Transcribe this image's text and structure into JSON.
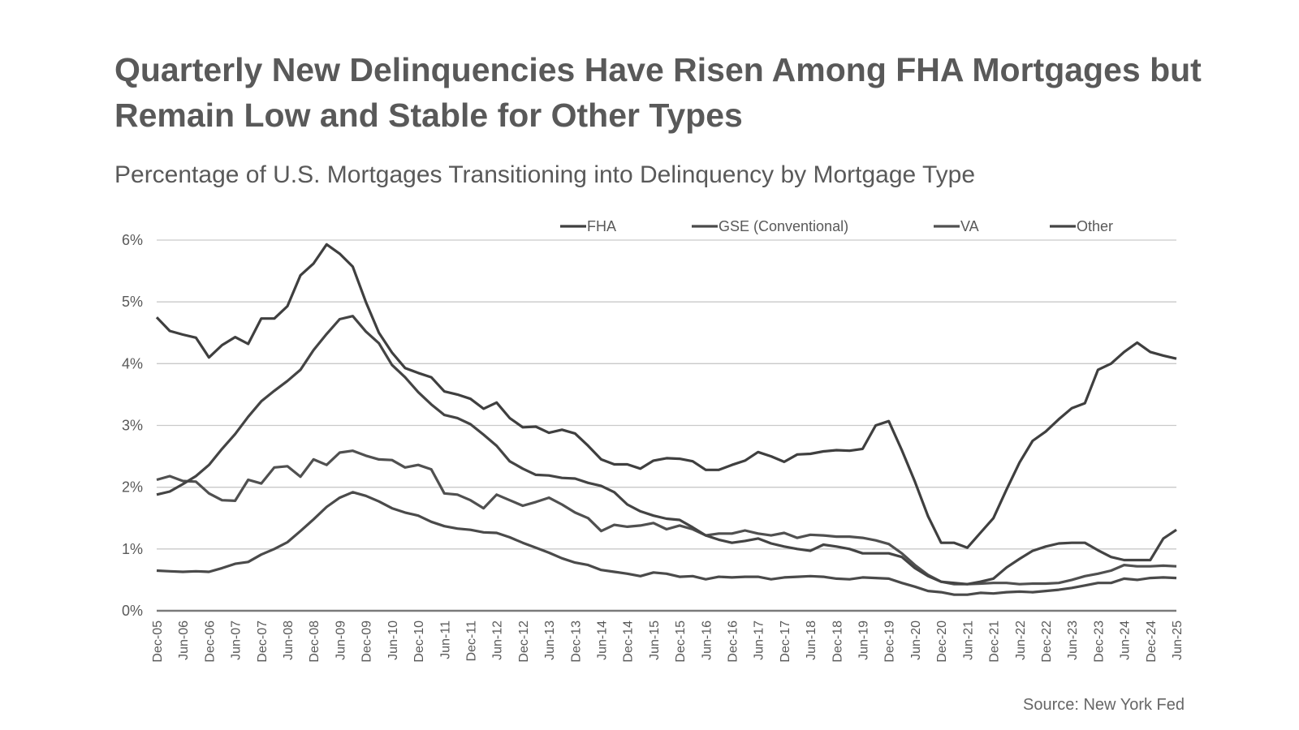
{
  "chart_data": {
    "type": "line",
    "title": "Quarterly New Delinquencies Have Risen Among FHA Mortgages but Remain Low and Stable for Other Types",
    "subtitle": "Percentage of U.S. Mortgages Transitioning into Delinquency by Mortgage Type",
    "source": "Source: New York Fed",
    "xlabel": "",
    "ylabel": "",
    "ylim": [
      0,
      6
    ],
    "y_ticks": [
      "0%",
      "1%",
      "2%",
      "3%",
      "4%",
      "5%",
      "6%"
    ],
    "x_frequency": "quarterly, Dec-05 to Jun-25",
    "x_ticks": [
      "Dec-05",
      "Jun-06",
      "Dec-06",
      "Jun-07",
      "Dec-07",
      "Jun-08",
      "Dec-08",
      "Jun-09",
      "Dec-09",
      "Jun-10",
      "Dec-10",
      "Jun-11",
      "Dec-11",
      "Jun-12",
      "Dec-12",
      "Jun-13",
      "Dec-13",
      "Jun-14",
      "Dec-14",
      "Jun-15",
      "Dec-15",
      "Jun-16",
      "Dec-16",
      "Jun-17",
      "Dec-17",
      "Jun-18",
      "Dec-18",
      "Jun-19",
      "Dec-19",
      "Jun-20",
      "Dec-20",
      "Jun-21",
      "Dec-21",
      "Jun-22",
      "Dec-22",
      "Jun-23",
      "Dec-23",
      "Jun-24",
      "Dec-24",
      "Jun-25"
    ],
    "grid": true,
    "legend_position": "top",
    "series": [
      {
        "name": "FHA",
        "color": "#3f3f3f",
        "values": [
          4.75,
          4.53,
          4.47,
          4.42,
          4.1,
          4.3,
          4.43,
          4.32,
          4.73,
          4.73,
          4.93,
          5.43,
          5.62,
          5.93,
          5.78,
          5.57,
          5.0,
          4.5,
          4.18,
          3.93,
          3.85,
          3.78,
          3.55,
          3.5,
          3.43,
          3.27,
          3.37,
          3.12,
          2.97,
          2.98,
          2.88,
          2.93,
          2.87,
          2.67,
          2.45,
          2.37,
          2.37,
          2.3,
          2.43,
          2.47,
          2.46,
          2.42,
          2.28,
          2.28,
          2.36,
          2.43,
          2.57,
          2.5,
          2.41,
          2.53,
          2.54,
          2.58,
          2.6,
          2.59,
          2.62,
          3.0,
          3.07,
          2.6,
          2.09,
          1.53,
          1.1,
          1.1,
          1.02,
          1.26,
          1.5,
          1.96,
          2.4,
          2.75,
          2.9,
          3.1,
          3.28,
          3.36,
          3.9,
          4.0,
          4.19,
          4.34,
          4.19,
          4.13,
          4.08
        ]
      },
      {
        "name": "GSE (Conventional)",
        "color": "#4a4a4a",
        "values": [
          0.65,
          0.64,
          0.63,
          0.64,
          0.63,
          0.69,
          0.76,
          0.79,
          0.91,
          1.0,
          1.11,
          1.29,
          1.48,
          1.68,
          1.83,
          1.92,
          1.86,
          1.77,
          1.66,
          1.59,
          1.54,
          1.44,
          1.37,
          1.33,
          1.31,
          1.27,
          1.26,
          1.19,
          1.1,
          1.02,
          0.94,
          0.85,
          0.78,
          0.74,
          0.66,
          0.63,
          0.6,
          0.56,
          0.62,
          0.6,
          0.55,
          0.56,
          0.51,
          0.55,
          0.54,
          0.55,
          0.55,
          0.51,
          0.54,
          0.55,
          0.56,
          0.55,
          0.52,
          0.51,
          0.54,
          0.53,
          0.52,
          0.45,
          0.39,
          0.32,
          0.3,
          0.26,
          0.26,
          0.29,
          0.28,
          0.3,
          0.31,
          0.3,
          0.32,
          0.34,
          0.37,
          0.41,
          0.45,
          0.45,
          0.52,
          0.5,
          0.53,
          0.54,
          0.53
        ]
      },
      {
        "name": "VA",
        "color": "#505050",
        "values": [
          2.12,
          2.18,
          2.1,
          2.09,
          1.9,
          1.79,
          1.78,
          2.12,
          2.06,
          2.32,
          2.34,
          2.17,
          2.45,
          2.36,
          2.56,
          2.59,
          2.51,
          2.45,
          2.44,
          2.32,
          2.36,
          2.29,
          1.9,
          1.88,
          1.79,
          1.66,
          1.88,
          1.79,
          1.7,
          1.76,
          1.83,
          1.72,
          1.59,
          1.5,
          1.29,
          1.39,
          1.36,
          1.38,
          1.42,
          1.32,
          1.38,
          1.32,
          1.22,
          1.25,
          1.25,
          1.3,
          1.25,
          1.22,
          1.26,
          1.18,
          1.23,
          1.22,
          1.2,
          1.2,
          1.18,
          1.14,
          1.08,
          0.93,
          0.74,
          0.58,
          0.47,
          0.43,
          0.43,
          0.44,
          0.45,
          0.45,
          0.43,
          0.44,
          0.44,
          0.45,
          0.5,
          0.56,
          0.6,
          0.65,
          0.74,
          0.72,
          0.72,
          0.73,
          0.72
        ]
      },
      {
        "name": "Other",
        "color": "#444444",
        "values": [
          1.88,
          1.93,
          2.05,
          2.18,
          2.36,
          2.62,
          2.86,
          3.14,
          3.39,
          3.56,
          3.72,
          3.9,
          4.22,
          4.48,
          4.72,
          4.77,
          4.52,
          4.33,
          3.98,
          3.78,
          3.54,
          3.34,
          3.17,
          3.12,
          3.02,
          2.85,
          2.67,
          2.42,
          2.3,
          2.2,
          2.19,
          2.15,
          2.14,
          2.07,
          2.02,
          1.92,
          1.72,
          1.61,
          1.54,
          1.49,
          1.47,
          1.35,
          1.22,
          1.15,
          1.1,
          1.13,
          1.17,
          1.09,
          1.04,
          1.0,
          0.97,
          1.07,
          1.04,
          1.0,
          0.93,
          0.93,
          0.93,
          0.87,
          0.69,
          0.56,
          0.47,
          0.45,
          0.43,
          0.47,
          0.52,
          0.7,
          0.84,
          0.97,
          1.04,
          1.09,
          1.1,
          1.1,
          0.98,
          0.87,
          0.82,
          0.82,
          0.82,
          1.17,
          1.31
        ]
      }
    ]
  }
}
